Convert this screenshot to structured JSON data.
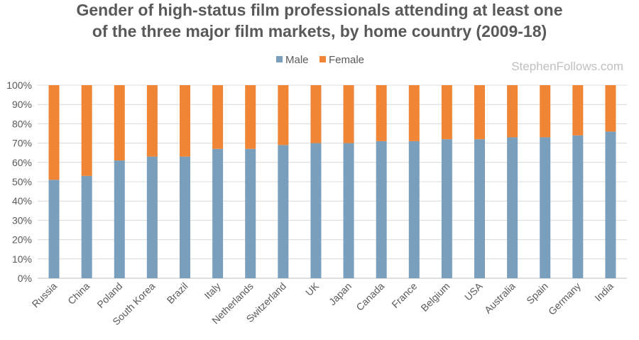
{
  "chart_data": {
    "type": "bar",
    "stacked": true,
    "title_lines": [
      "Gender of high-status film professionals attending at least one",
      "of the three major film markets, by home country (2009-18)"
    ],
    "watermark": "StephenFollows.com",
    "legend_position": "top-center",
    "grid": true,
    "ylim": [
      0,
      100
    ],
    "y_ticks": [
      "0%",
      "10%",
      "20%",
      "30%",
      "40%",
      "50%",
      "60%",
      "70%",
      "80%",
      "90%",
      "100%"
    ],
    "categories": [
      "Russia",
      "China",
      "Poland",
      "South Korea",
      "Brazil",
      "Italy",
      "Netherlands",
      "Switzerland",
      "UK",
      "Japan",
      "Canada",
      "France",
      "Belgium",
      "USA",
      "Australia",
      "Spain",
      "Germany",
      "India"
    ],
    "series": [
      {
        "name": "Male",
        "color": "#7a9fbd",
        "values": [
          51,
          53,
          61,
          63,
          63,
          67,
          67,
          69,
          70,
          70,
          71,
          71,
          72,
          72,
          73,
          73,
          74,
          76
        ]
      },
      {
        "name": "Female",
        "color": "#f08535",
        "values": [
          49,
          47,
          39,
          37,
          37,
          33,
          33,
          31,
          30,
          30,
          29,
          29,
          28,
          28,
          27,
          27,
          26,
          24
        ]
      }
    ]
  }
}
